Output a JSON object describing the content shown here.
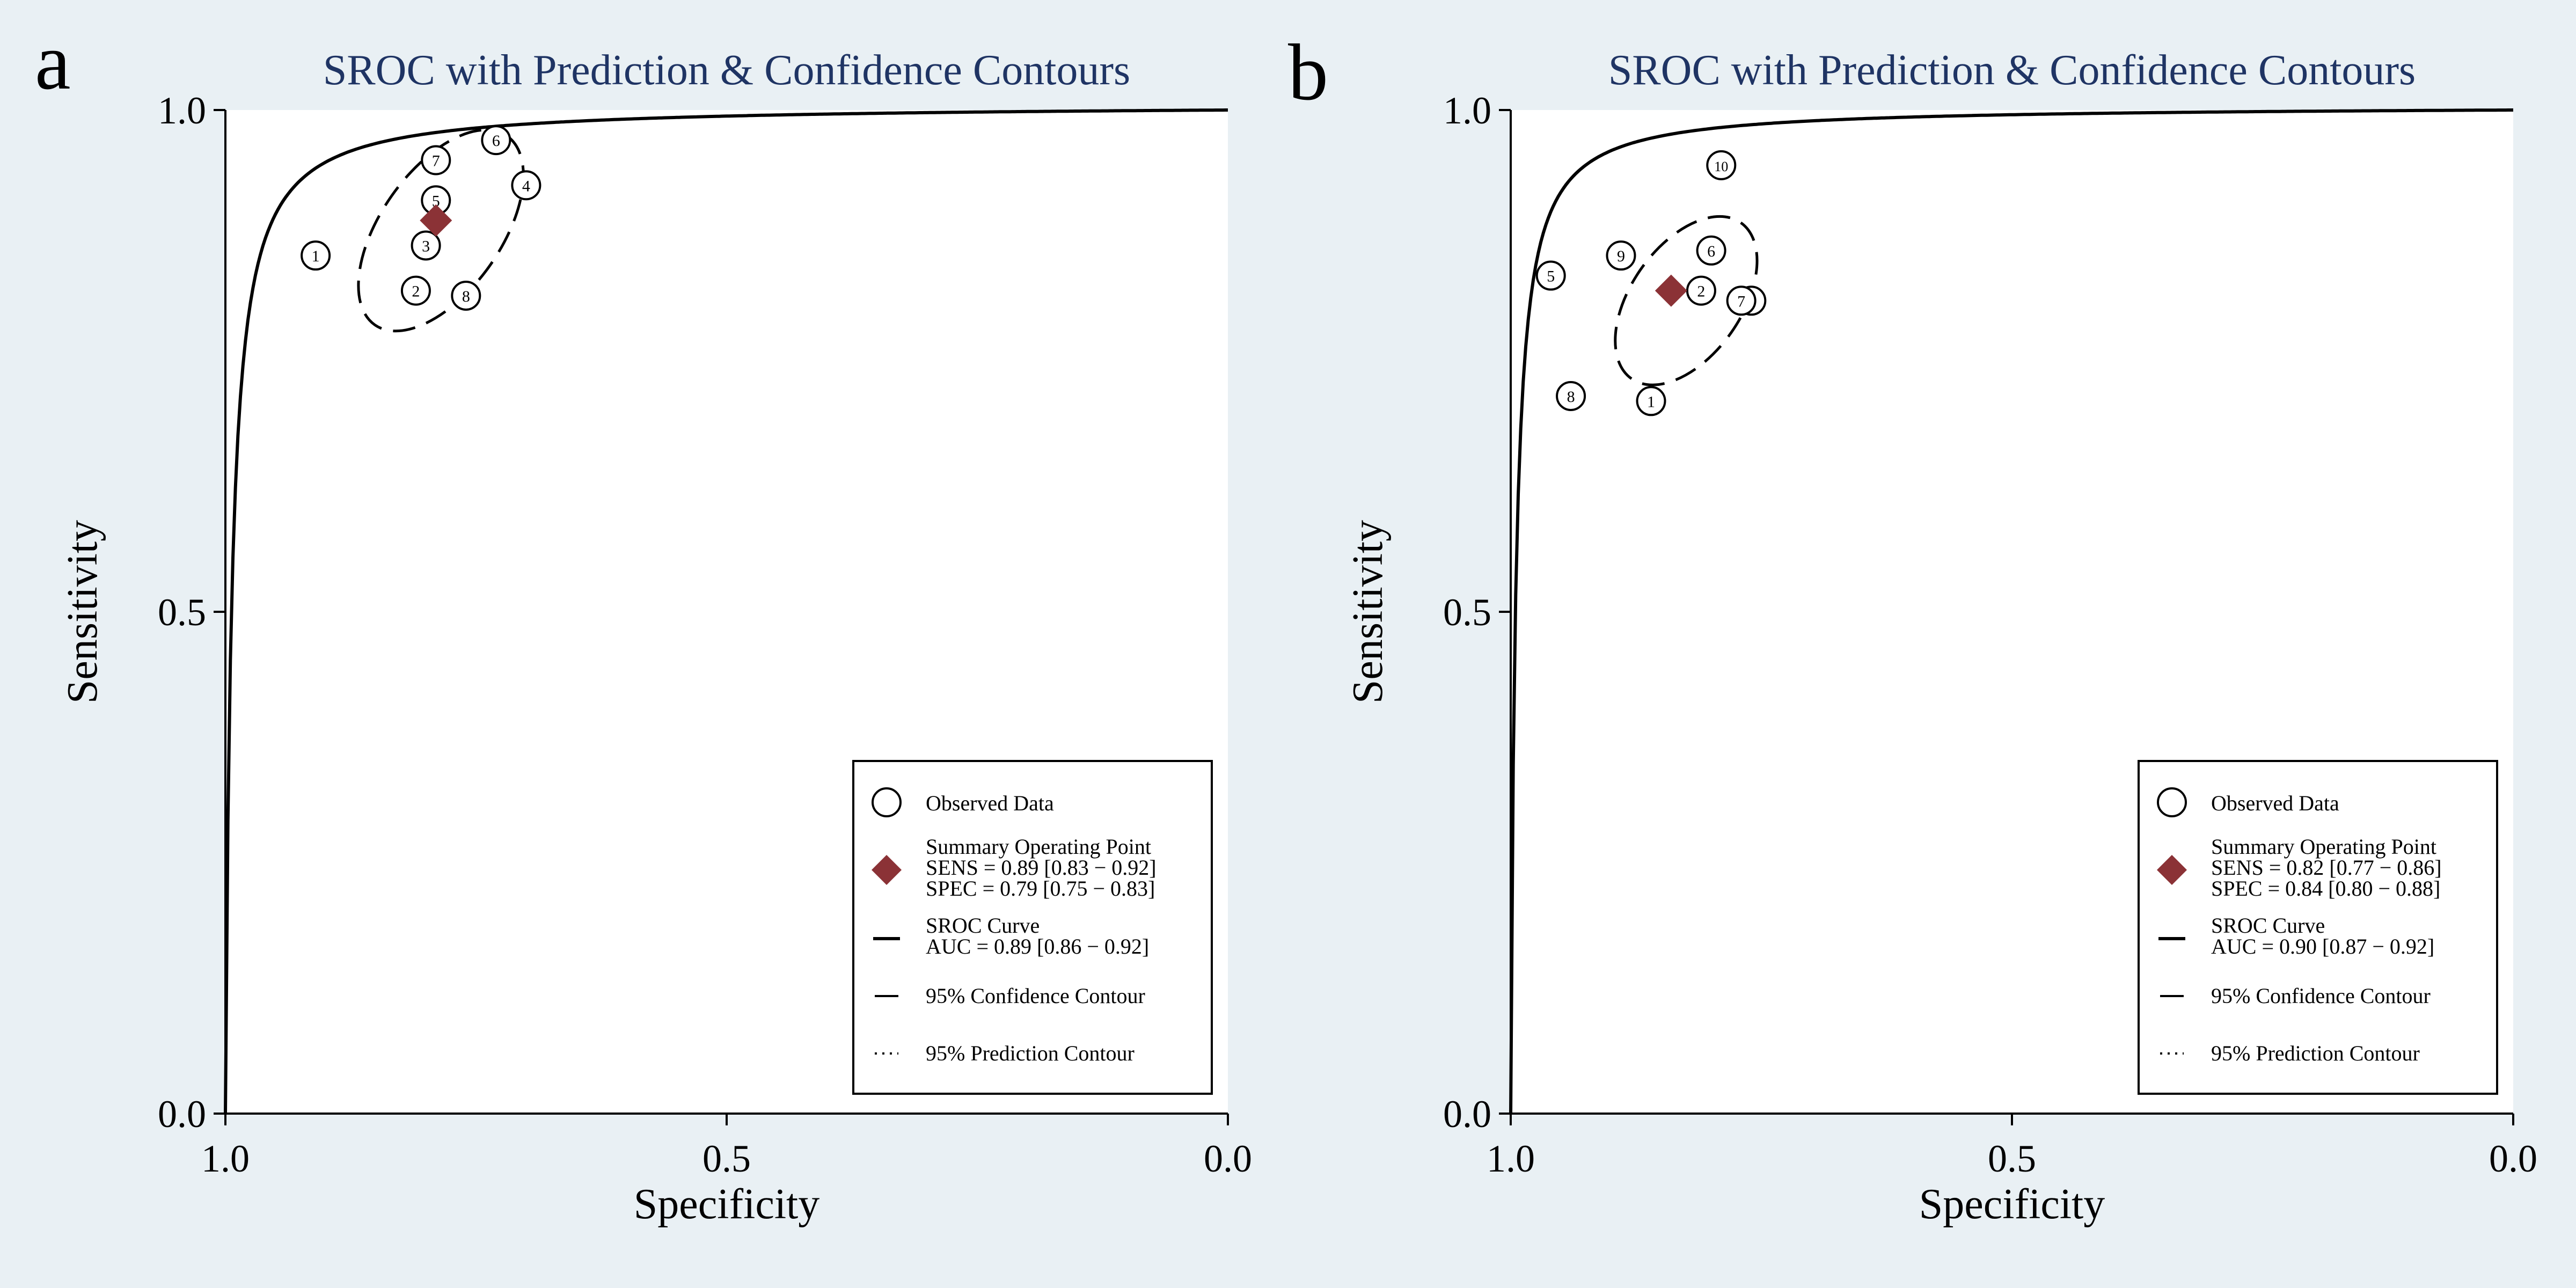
{
  "page": {
    "background": "#e9f0f4",
    "plot_background": "#ffffff",
    "title_color": "#1f3464",
    "summary_color": "#8b3236"
  },
  "chart_data": [
    {
      "panel_letter": "a",
      "type": "scatter",
      "title": "SROC with Prediction & Confidence Contours",
      "xlabel": "Specificity",
      "ylabel": "Sensitivity",
      "xlim": [
        1.0,
        0.0
      ],
      "ylim": [
        0.0,
        1.0
      ],
      "xticks": [
        "1.0",
        "0.5",
        "0.0"
      ],
      "yticks": [
        "0.0",
        "0.5",
        "1.0"
      ],
      "studies": [
        {
          "label": "1",
          "spec": 0.91,
          "sens": 0.855
        },
        {
          "label": "2",
          "spec": 0.81,
          "sens": 0.82
        },
        {
          "label": "3",
          "spec": 0.8,
          "sens": 0.865
        },
        {
          "label": "4",
          "spec": 0.7,
          "sens": 0.925
        },
        {
          "label": "5",
          "spec": 0.79,
          "sens": 0.91
        },
        {
          "label": "6",
          "spec": 0.73,
          "sens": 0.97
        },
        {
          "label": "7",
          "spec": 0.79,
          "sens": 0.95
        },
        {
          "label": "8",
          "spec": 0.76,
          "sens": 0.815
        }
      ],
      "summary": {
        "spec": 0.79,
        "sens": 0.89
      },
      "sroc_auc": 0.89,
      "confidence_contour": {
        "center_spec": 0.785,
        "center_sens": 0.88,
        "semi_axis_major": 0.115,
        "semi_axis_minor": 0.06,
        "rotation_deg": 55
      },
      "legend": {
        "observed": "Observed Data",
        "summary_title": "Summary Operating Point",
        "sens": "SENS = 0.89 [0.83 − 0.92]",
        "spec": "SPEC = 0.79 [0.75 − 0.83]",
        "sroc_title": "SROC Curve",
        "auc": "AUC = 0.89 [0.86 − 0.92]",
        "conf": "95% Confidence Contour",
        "pred": "95% Prediction Contour"
      }
    },
    {
      "panel_letter": "b",
      "type": "scatter",
      "title": "SROC with Prediction & Confidence Contours",
      "xlabel": "Specificity",
      "ylabel": "Sensitivity",
      "xlim": [
        1.0,
        0.0
      ],
      "ylim": [
        0.0,
        1.0
      ],
      "xticks": [
        "1.0",
        "0.5",
        "0.0"
      ],
      "yticks": [
        "0.0",
        "0.5",
        "1.0"
      ],
      "studies": [
        {
          "label": "1",
          "spec": 0.86,
          "sens": 0.71
        },
        {
          "label": "2",
          "spec": 0.81,
          "sens": 0.82
        },
        {
          "label": "5",
          "spec": 0.96,
          "sens": 0.835
        },
        {
          "label": "6",
          "spec": 0.8,
          "sens": 0.86
        },
        {
          "label": "7",
          "spec": 0.77,
          "sens": 0.81
        },
        {
          "label": "8",
          "spec": 0.94,
          "sens": 0.715
        },
        {
          "label": "9",
          "spec": 0.89,
          "sens": 0.855
        },
        {
          "label": "10",
          "spec": 0.79,
          "sens": 0.945
        }
      ],
      "extra_circles": [
        {
          "spec": 0.76,
          "sens": 0.81
        }
      ],
      "summary": {
        "spec": 0.84,
        "sens": 0.82
      },
      "sroc_auc": 0.9,
      "confidence_contour": {
        "center_spec": 0.825,
        "center_sens": 0.81,
        "semi_axis_major": 0.095,
        "semi_axis_minor": 0.055,
        "rotation_deg": 55
      },
      "legend": {
        "observed": "Observed Data",
        "summary_title": "Summary Operating Point",
        "sens": "SENS = 0.82 [0.77 − 0.86]",
        "spec": "SPEC = 0.84 [0.80 − 0.88]",
        "sroc_title": "SROC Curve",
        "auc": "AUC = 0.90 [0.87 − 0.92]",
        "conf": "95% Confidence Contour",
        "pred": "95% Prediction Contour"
      }
    }
  ]
}
